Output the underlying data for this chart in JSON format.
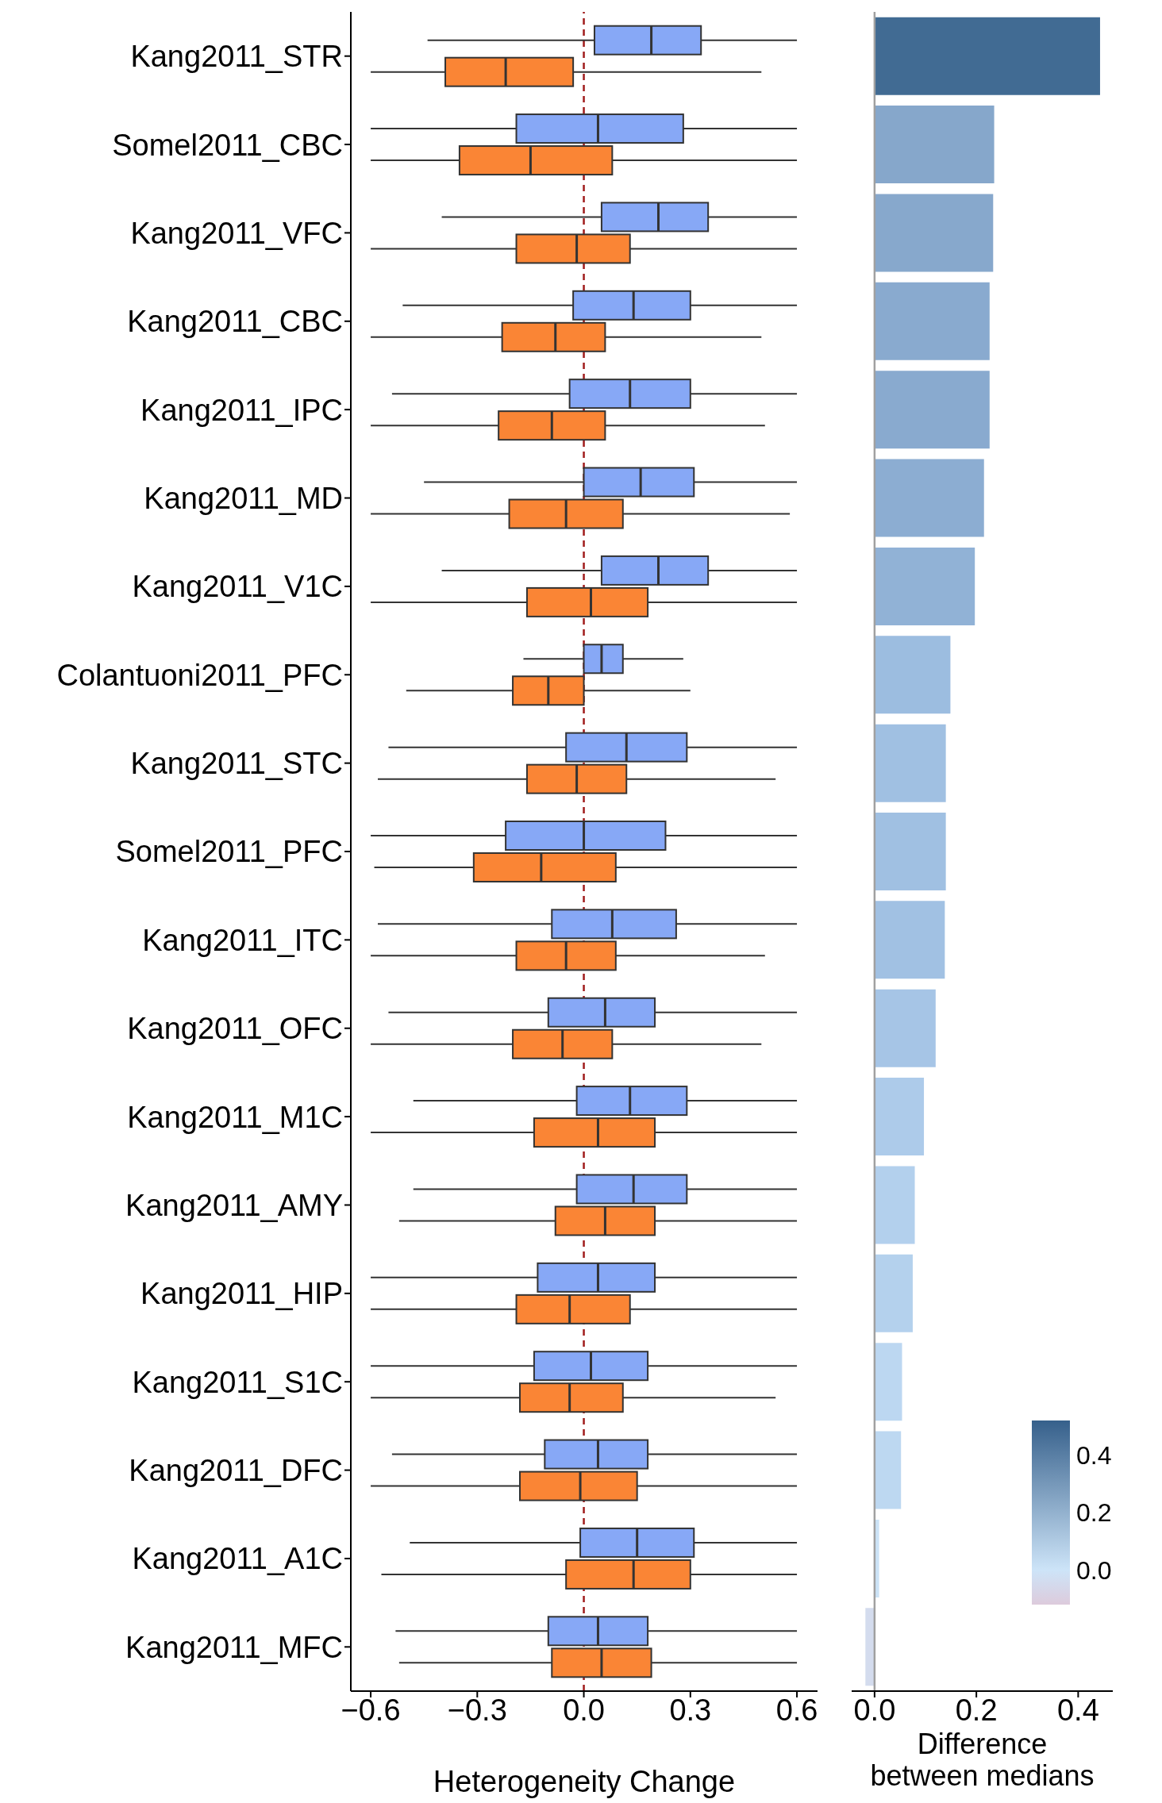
{
  "chart_data": [
    {
      "type": "box",
      "orientation": "horizontal",
      "categories": [
        "Kang2011_STR",
        "Somel2011_CBC",
        "Kang2011_VFC",
        "Kang2011_CBC",
        "Kang2011_IPC",
        "Kang2011_MD",
        "Kang2011_V1C",
        "Colantuoni2011_PFC",
        "Kang2011_STC",
        "Somel2011_PFC",
        "Kang2011_ITC",
        "Kang2011_OFC",
        "Kang2011_M1C",
        "Kang2011_AMY",
        "Kang2011_HIP",
        "Kang2011_S1C",
        "Kang2011_DFC",
        "Kang2011_A1C",
        "Kang2011_MFC"
      ],
      "series": [
        {
          "color": "#87a8f6",
          "boxes": [
            {
              "low": -0.44,
              "q1": 0.03,
              "median": 0.19,
              "q3": 0.33,
              "high": 0.6
            },
            {
              "low": -0.6,
              "q1": -0.19,
              "median": 0.04,
              "q3": 0.28,
              "high": 0.6
            },
            {
              "low": -0.4,
              "q1": 0.05,
              "median": 0.21,
              "q3": 0.35,
              "high": 0.6
            },
            {
              "low": -0.51,
              "q1": -0.03,
              "median": 0.14,
              "q3": 0.3,
              "high": 0.6
            },
            {
              "low": -0.54,
              "q1": -0.04,
              "median": 0.13,
              "q3": 0.3,
              "high": 0.6
            },
            {
              "low": -0.45,
              "q1": 0.0,
              "median": 0.16,
              "q3": 0.31,
              "high": 0.6
            },
            {
              "low": -0.4,
              "q1": 0.05,
              "median": 0.21,
              "q3": 0.35,
              "high": 0.6
            },
            {
              "low": -0.17,
              "q1": 0.0,
              "median": 0.05,
              "q3": 0.11,
              "high": 0.28
            },
            {
              "low": -0.55,
              "q1": -0.05,
              "median": 0.12,
              "q3": 0.29,
              "high": 0.6
            },
            {
              "low": -0.6,
              "q1": -0.22,
              "median": 0.0,
              "q3": 0.23,
              "high": 0.6
            },
            {
              "low": -0.58,
              "q1": -0.09,
              "median": 0.08,
              "q3": 0.26,
              "high": 0.6
            },
            {
              "low": -0.55,
              "q1": -0.1,
              "median": 0.06,
              "q3": 0.2,
              "high": 0.6
            },
            {
              "low": -0.48,
              "q1": -0.02,
              "median": 0.13,
              "q3": 0.29,
              "high": 0.6
            },
            {
              "low": -0.48,
              "q1": -0.02,
              "median": 0.14,
              "q3": 0.29,
              "high": 0.6
            },
            {
              "low": -0.6,
              "q1": -0.13,
              "median": 0.04,
              "q3": 0.2,
              "high": 0.6
            },
            {
              "low": -0.6,
              "q1": -0.14,
              "median": 0.02,
              "q3": 0.18,
              "high": 0.6
            },
            {
              "low": -0.54,
              "q1": -0.11,
              "median": 0.04,
              "q3": 0.18,
              "high": 0.6
            },
            {
              "low": -0.49,
              "q1": -0.01,
              "median": 0.15,
              "q3": 0.31,
              "high": 0.6
            },
            {
              "low": -0.53,
              "q1": -0.1,
              "median": 0.04,
              "q3": 0.18,
              "high": 0.6
            }
          ]
        },
        {
          "color": "#fa8535",
          "boxes": [
            {
              "low": -0.6,
              "q1": -0.39,
              "median": -0.22,
              "q3": -0.03,
              "high": 0.5
            },
            {
              "low": -0.6,
              "q1": -0.35,
              "median": -0.15,
              "q3": 0.08,
              "high": 0.6
            },
            {
              "low": -0.6,
              "q1": -0.19,
              "median": -0.02,
              "q3": 0.13,
              "high": 0.6
            },
            {
              "low": -0.6,
              "q1": -0.23,
              "median": -0.08,
              "q3": 0.06,
              "high": 0.5
            },
            {
              "low": -0.6,
              "q1": -0.24,
              "median": -0.09,
              "q3": 0.06,
              "high": 0.51
            },
            {
              "low": -0.6,
              "q1": -0.21,
              "median": -0.05,
              "q3": 0.11,
              "high": 0.58
            },
            {
              "low": -0.6,
              "q1": -0.16,
              "median": 0.02,
              "q3": 0.18,
              "high": 0.6
            },
            {
              "low": -0.5,
              "q1": -0.2,
              "median": -0.1,
              "q3": 0.0,
              "high": 0.3
            },
            {
              "low": -0.58,
              "q1": -0.16,
              "median": -0.02,
              "q3": 0.12,
              "high": 0.54
            },
            {
              "low": -0.59,
              "q1": -0.31,
              "median": -0.12,
              "q3": 0.09,
              "high": 0.6
            },
            {
              "low": -0.6,
              "q1": -0.19,
              "median": -0.05,
              "q3": 0.09,
              "high": 0.51
            },
            {
              "low": -0.6,
              "q1": -0.2,
              "median": -0.06,
              "q3": 0.08,
              "high": 0.5
            },
            {
              "low": -0.6,
              "q1": -0.14,
              "median": 0.04,
              "q3": 0.2,
              "high": 0.6
            },
            {
              "low": -0.52,
              "q1": -0.08,
              "median": 0.06,
              "q3": 0.2,
              "high": 0.6
            },
            {
              "low": -0.6,
              "q1": -0.19,
              "median": -0.04,
              "q3": 0.13,
              "high": 0.6
            },
            {
              "low": -0.6,
              "q1": -0.18,
              "median": -0.04,
              "q3": 0.11,
              "high": 0.54
            },
            {
              "low": -0.6,
              "q1": -0.18,
              "median": -0.01,
              "q3": 0.15,
              "high": 0.6
            },
            {
              "low": -0.57,
              "q1": -0.05,
              "median": 0.14,
              "q3": 0.3,
              "high": 0.6
            },
            {
              "low": -0.52,
              "q1": -0.09,
              "median": 0.05,
              "q3": 0.19,
              "high": 0.6
            }
          ]
        }
      ],
      "xlim": [
        -0.656,
        0.658
      ],
      "xticks": [
        {
          "value": -0.6,
          "label": "−0.6"
        },
        {
          "value": -0.3,
          "label": "−0.3"
        },
        {
          "value": 0,
          "label": "0.0"
        },
        {
          "value": 0.3,
          "label": "0.3"
        },
        {
          "value": 0.6,
          "label": "0.6"
        }
      ],
      "xlabel": "Heterogeneity Change",
      "ref_lines": [
        {
          "axis": "x",
          "value": 0,
          "color": "#a01c1c",
          "line_style": "dashed"
        }
      ]
    },
    {
      "type": "bar",
      "orientation": "horizontal",
      "categories": [
        null,
        null,
        null,
        null,
        null,
        null,
        null,
        null,
        null,
        null,
        null,
        null,
        null,
        null,
        null,
        null,
        null,
        null,
        null
      ],
      "values": [
        0.443,
        0.235,
        0.233,
        0.226,
        0.226,
        0.215,
        0.197,
        0.149,
        0.14,
        0.14,
        0.138,
        0.12,
        0.097,
        0.079,
        0.075,
        0.054,
        0.052,
        0.009,
        -0.018
      ],
      "colors": [
        "#416b93",
        "#86a7cb",
        "#87a8cc",
        "#89aacf",
        "#89aacf",
        "#8cadd2",
        "#91b2d6",
        "#9cbde0",
        "#a0c0e2",
        "#a0c0e2",
        "#a1c1e3",
        "#a6c5e6",
        "#adcbea",
        "#b3d0ed",
        "#b4d1ed",
        "#bcd7f1",
        "#bdd8f1",
        "#cbe2f6",
        "#d4dcee"
      ],
      "xlim": [
        -0.045,
        0.468
      ],
      "xticks": [
        {
          "value": 0,
          "label": "0.0"
        },
        {
          "value": 0.2,
          "label": "0.2"
        },
        {
          "value": 0.4,
          "label": "0.4"
        }
      ],
      "xlabel": "Difference between medians",
      "tick_labels": "x",
      "annotations": [
        "0.4",
        "0.2",
        "0.0"
      ],
      "ref_lines": [
        {
          "axis": "x",
          "value": 0,
          "color": "#a0a0a0",
          "line_style": "solid"
        }
      ]
    }
  ]
}
